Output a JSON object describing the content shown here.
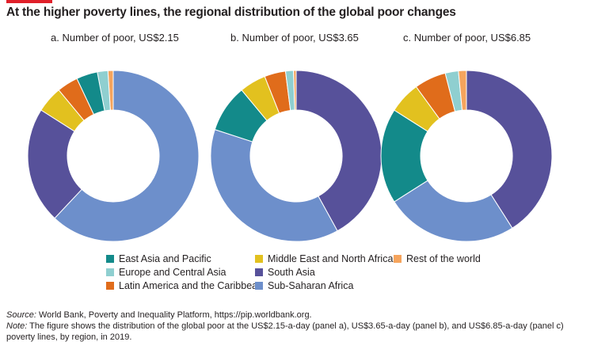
{
  "title": "At the higher poverty lines, the regional distribution of the global poor changes",
  "colors": {
    "accent": "#e0202a",
    "east_asia_pacific": "#138a8a",
    "europe_central_asia": "#8fcfd0",
    "latin_america_caribbean": "#e06c1b",
    "middle_east_north_africa": "#e2c11f",
    "rest_of_world": "#f5a45d",
    "south_asia": "#57519a",
    "sub_saharan_africa": "#6d8fcb"
  },
  "legend": [
    {
      "key": "east_asia_pacific",
      "label": "East Asia and Pacific"
    },
    {
      "key": "middle_east_north_africa",
      "label": "Middle East and North Africa"
    },
    {
      "key": "rest_of_world",
      "label": "Rest of the world"
    },
    {
      "key": "europe_central_asia",
      "label": "Europe and Central Asia"
    },
    {
      "key": "south_asia",
      "label": "South Asia"
    },
    {
      "key": "latin_america_caribbean",
      "label": "Latin America and the Caribbean"
    },
    {
      "key": "sub_saharan_africa",
      "label": "Sub-Saharan Africa"
    }
  ],
  "notes": {
    "source_label": "Source:",
    "source_text": " World Bank, Poverty and Inequality Platform, https://pip.worldbank.org.",
    "note_label": "Note:",
    "note_text": " The figure shows the distribution of the global poor at the US$2.15-a-day (panel a), US$3.65-a-day (panel b), and US$6.85-a-day (panel c) poverty lines, by region, in 2019."
  },
  "chart_data": [
    {
      "type": "pie",
      "donut": true,
      "title": "a. Number of poor, US$2.15",
      "slices": [
        {
          "key": "south_asia",
          "value": 0
        },
        {
          "key": "rest_of_world",
          "value": 1
        },
        {
          "key": "europe_central_asia",
          "value": 2
        },
        {
          "key": "east_asia_pacific",
          "value": 4
        },
        {
          "key": "latin_america_caribbean",
          "value": 4
        },
        {
          "key": "middle_east_north_africa",
          "value": 5
        },
        {
          "key": "sub_saharan_africa",
          "value": 0
        },
        {
          "key": "south_asia",
          "value": 22
        },
        {
          "key": "sub_saharan_africa",
          "value": 62
        }
      ]
    },
    {
      "type": "pie",
      "donut": true,
      "title": "b. Number of poor, US$3.65",
      "slices": [
        {
          "key": "south_asia",
          "value": 42
        },
        {
          "key": "sub_saharan_africa",
          "value": 38
        },
        {
          "key": "east_asia_pacific",
          "value": 9
        },
        {
          "key": "middle_east_north_africa",
          "value": 5
        },
        {
          "key": "latin_america_caribbean",
          "value": 4
        },
        {
          "key": "europe_central_asia",
          "value": 1.5
        },
        {
          "key": "rest_of_world",
          "value": 0.5
        }
      ]
    },
    {
      "type": "pie",
      "donut": true,
      "title": "c. Number of poor, US$6.85",
      "slices": [
        {
          "key": "south_asia",
          "value": 41
        },
        {
          "key": "sub_saharan_africa",
          "value": 25
        },
        {
          "key": "east_asia_pacific",
          "value": 18
        },
        {
          "key": "middle_east_north_africa",
          "value": 6
        },
        {
          "key": "latin_america_caribbean",
          "value": 6
        },
        {
          "key": "europe_central_asia",
          "value": 2.5
        },
        {
          "key": "rest_of_world",
          "value": 1.5
        }
      ]
    }
  ]
}
